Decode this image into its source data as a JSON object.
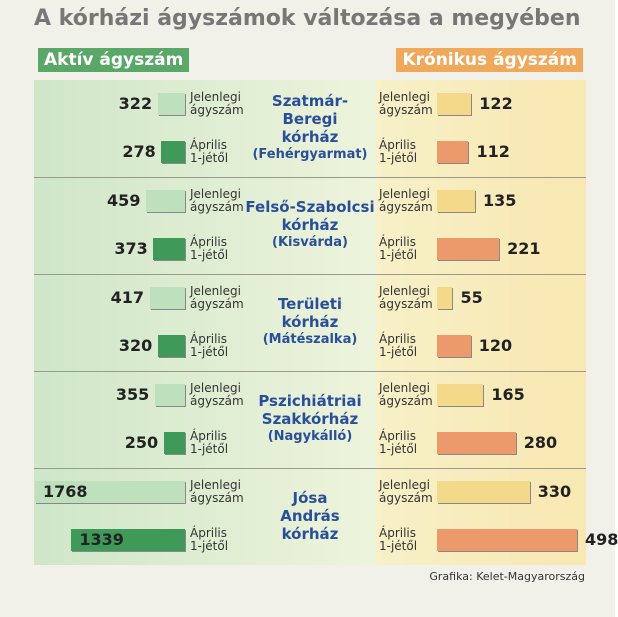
{
  "chart_data": {
    "type": "butterfly-bar",
    "title": "A kórházi ágyszámok változása a megyében",
    "row_labels": [
      [
        "Jelenlegi",
        "ágyszám"
      ],
      [
        "Április",
        "1-jétől"
      ]
    ],
    "categories": [
      {
        "name": [
          "Szatmár-Beregi",
          "kórház"
        ],
        "place": "(Fehérgyarmat)"
      },
      {
        "name": [
          "Felső-Szabolcsi",
          "kórház"
        ],
        "place": "(Kisvárda)"
      },
      {
        "name": [
          "Területi",
          "kórház"
        ],
        "place": "(Mátészalka)"
      },
      {
        "name": [
          "Pszichiátriai",
          "Szakkórház"
        ],
        "place": "(Nagykálló)"
      },
      {
        "name": [
          "Jósa",
          "András",
          "kórház"
        ]
      }
    ],
    "series": [
      {
        "name": "Aktív ágyszám",
        "colors": [
          "#bfe0bc",
          "#3f9a5a"
        ],
        "header_color": "#5aa868",
        "current": [
          322,
          459,
          417,
          355,
          1768
        ],
        "april": [
          278,
          373,
          320,
          250,
          1339
        ]
      },
      {
        "name": "Krónikus ágyszám",
        "colors": [
          "#f4d98a",
          "#ec9a6c"
        ],
        "header_color": "#f0a85a",
        "current": [
          122,
          135,
          55,
          165,
          330
        ],
        "april": [
          112,
          221,
          120,
          280,
          498
        ]
      }
    ],
    "source": "Grafika: Kelet-Magyarország"
  }
}
